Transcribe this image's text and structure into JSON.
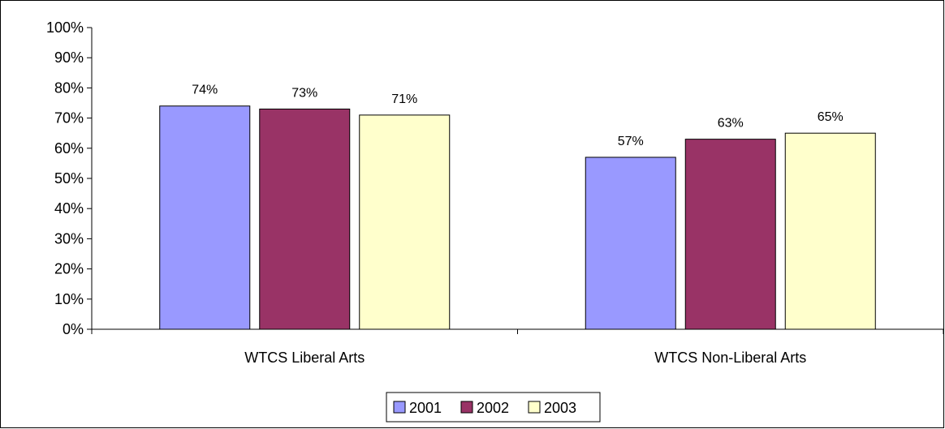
{
  "chart_data": {
    "type": "bar",
    "categories": [
      "WTCS Liberal Arts",
      "WTCS Non-Liberal Arts"
    ],
    "series": [
      {
        "name": "2001",
        "color": "#9999FF",
        "values": [
          74,
          57
        ]
      },
      {
        "name": "2002",
        "color": "#993366",
        "values": [
          73,
          63
        ]
      },
      {
        "name": "2003",
        "color": "#FFFFCC",
        "values": [
          71,
          65
        ]
      }
    ],
    "value_suffix": "%",
    "ylim": [
      0,
      100
    ],
    "ytick_step": 10,
    "grid": false,
    "legend_position": "bottom"
  }
}
